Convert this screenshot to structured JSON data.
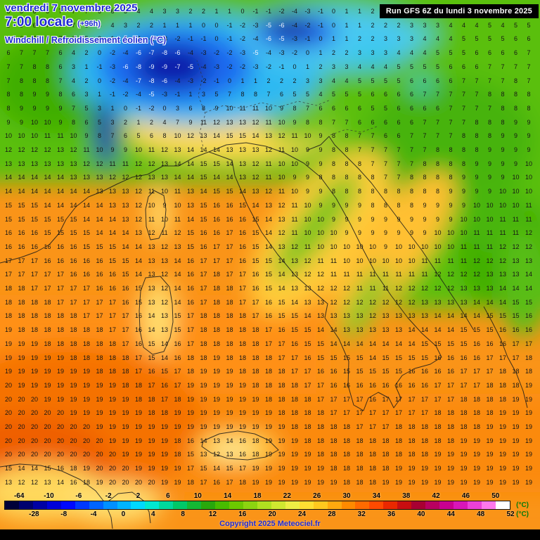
{
  "header": {
    "date_line": "vendredi 7 novembre 2025",
    "time_line": "7:00 locale",
    "offset_label": "(+96h)",
    "variable_label": "Windchill / Refroidissement éolien (°C)",
    "run_label": "Run GFS 6Z du lundi 3 novembre 2025"
  },
  "footer": {
    "copyright": "Copyright 2025 Meteociel.fr",
    "unit_label": "(°C)"
  },
  "scale": {
    "top_labels": [
      "-64",
      "-10",
      "-6",
      "-2",
      "2",
      "6",
      "10",
      "14",
      "18",
      "22",
      "26",
      "30",
      "34",
      "38",
      "42",
      "46",
      "50"
    ],
    "bottom_labels": [
      "-28",
      "-8",
      "-4",
      "0",
      "4",
      "8",
      "12",
      "16",
      "20",
      "24",
      "28",
      "32",
      "36",
      "40",
      "44",
      "48",
      "52"
    ],
    "colors": [
      "#000038",
      "#00006e",
      "#0000a4",
      "#0000d8",
      "#0008ff",
      "#0038ff",
      "#0064ff",
      "#0090ff",
      "#00b4ff",
      "#00d8ff",
      "#00e8d0",
      "#00d89c",
      "#00c868",
      "#14b834",
      "#28a80c",
      "#48bc00",
      "#6cc800",
      "#8cd410",
      "#b0e020",
      "#d0e830",
      "#eeee44",
      "#ffdf32",
      "#ffc81e",
      "#ffa90e",
      "#ff8a00",
      "#ff6a00",
      "#ff4a00",
      "#ea2800",
      "#c80e10",
      "#a80032",
      "#b80060",
      "#c80090",
      "#d816b8",
      "#ec40d8",
      "#ff78ec",
      "#ffffff"
    ]
  },
  "grid": {
    "rows": [
      [
        5,
        5,
        6,
        6,
        7,
        7,
        7,
        6,
        6,
        5,
        4,
        4,
        3,
        3,
        2,
        2,
        1,
        1,
        0,
        -1,
        -1,
        -2,
        -4,
        -3,
        -1,
        0,
        1,
        1,
        2,
        2,
        3,
        3,
        2,
        3,
        4,
        3,
        4,
        4,
        3,
        4,
        4
      ],
      [
        5,
        6,
        6,
        7,
        7,
        7,
        6,
        5,
        4,
        3,
        2,
        2,
        1,
        1,
        1,
        0,
        0,
        -1,
        -2,
        -3,
        -5,
        -6,
        -4,
        -2,
        -1,
        0,
        1,
        1,
        2,
        2,
        2,
        3,
        3,
        3,
        4,
        4,
        4,
        5,
        4,
        5,
        5
      ],
      [
        6,
        6,
        7,
        7,
        7,
        6,
        5,
        3,
        1,
        0,
        -1,
        -2,
        -3,
        -2,
        -1,
        -1,
        0,
        -1,
        -2,
        -4,
        -6,
        -5,
        -3,
        -1,
        0,
        1,
        1,
        2,
        2,
        3,
        3,
        3,
        4,
        4,
        4,
        5,
        5,
        5,
        5,
        6,
        6
      ],
      [
        6,
        7,
        7,
        7,
        6,
        4,
        2,
        0,
        -2,
        -4,
        -6,
        -7,
        -8,
        -6,
        -4,
        -3,
        -2,
        -2,
        -3,
        -5,
        -4,
        -3,
        -2,
        0,
        1,
        2,
        2,
        3,
        3,
        3,
        4,
        4,
        4,
        5,
        5,
        5,
        6,
        6,
        6,
        6,
        7
      ],
      [
        7,
        7,
        8,
        8,
        6,
        3,
        1,
        -1,
        -3,
        -6,
        -8,
        -9,
        -9,
        -7,
        -5,
        -4,
        -3,
        -2,
        -2,
        -3,
        -2,
        -1,
        0,
        1,
        2,
        3,
        3,
        4,
        4,
        4,
        5,
        5,
        5,
        5,
        6,
        6,
        6,
        7,
        7,
        7,
        7
      ],
      [
        7,
        8,
        8,
        8,
        7,
        4,
        2,
        0,
        -2,
        -4,
        -7,
        -8,
        -6,
        -4,
        -3,
        -2,
        -1,
        0,
        1,
        1,
        2,
        2,
        2,
        3,
        3,
        4,
        4,
        5,
        5,
        5,
        5,
        6,
        6,
        6,
        6,
        7,
        7,
        7,
        7,
        8,
        7
      ],
      [
        8,
        8,
        9,
        9,
        8,
        6,
        3,
        1,
        -1,
        -2,
        -4,
        -5,
        -3,
        -1,
        1,
        3,
        5,
        7,
        8,
        8,
        7,
        6,
        5,
        5,
        4,
        5,
        5,
        5,
        6,
        6,
        6,
        6,
        7,
        7,
        7,
        7,
        7,
        8,
        8,
        8,
        8
      ],
      [
        8,
        9,
        9,
        9,
        9,
        7,
        5,
        3,
        1,
        0,
        -1,
        -2,
        0,
        3,
        6,
        8,
        9,
        10,
        11,
        11,
        10,
        9,
        8,
        7,
        6,
        6,
        6,
        6,
        5,
        5,
        6,
        6,
        6,
        6,
        7,
        7,
        7,
        7,
        8,
        8,
        8
      ],
      [
        9,
        9,
        10,
        10,
        9,
        8,
        6,
        5,
        3,
        2,
        1,
        2,
        4,
        7,
        9,
        11,
        12,
        13,
        13,
        12,
        11,
        10,
        9,
        8,
        8,
        7,
        7,
        6,
        6,
        6,
        6,
        6,
        7,
        7,
        7,
        7,
        8,
        8,
        8,
        9,
        9
      ],
      [
        10,
        10,
        10,
        11,
        11,
        10,
        9,
        8,
        7,
        6,
        5,
        6,
        8,
        10,
        12,
        13,
        14,
        15,
        15,
        14,
        13,
        12,
        11,
        10,
        9,
        8,
        8,
        7,
        7,
        6,
        6,
        7,
        7,
        7,
        7,
        8,
        8,
        8,
        9,
        9,
        9
      ],
      [
        12,
        12,
        12,
        12,
        13,
        12,
        11,
        10,
        9,
        9,
        10,
        11,
        12,
        13,
        14,
        14,
        14,
        13,
        13,
        13,
        12,
        11,
        10,
        9,
        9,
        8,
        8,
        7,
        7,
        7,
        7,
        7,
        7,
        8,
        8,
        8,
        8,
        9,
        9,
        9,
        9
      ],
      [
        13,
        13,
        13,
        13,
        13,
        13,
        12,
        12,
        11,
        11,
        12,
        12,
        13,
        14,
        14,
        15,
        15,
        14,
        13,
        12,
        11,
        10,
        10,
        9,
        9,
        8,
        8,
        8,
        7,
        7,
        7,
        7,
        8,
        8,
        8,
        8,
        9,
        9,
        9,
        9,
        10
      ],
      [
        14,
        14,
        14,
        14,
        14,
        13,
        13,
        13,
        12,
        12,
        12,
        13,
        13,
        14,
        14,
        15,
        14,
        14,
        13,
        12,
        11,
        10,
        9,
        9,
        8,
        8,
        8,
        8,
        8,
        7,
        7,
        8,
        8,
        8,
        8,
        9,
        9,
        9,
        9,
        10,
        10
      ],
      [
        14,
        14,
        14,
        14,
        14,
        14,
        14,
        13,
        13,
        13,
        12,
        11,
        10,
        11,
        13,
        14,
        15,
        15,
        14,
        13,
        12,
        11,
        10,
        9,
        9,
        8,
        8,
        8,
        8,
        8,
        8,
        8,
        8,
        8,
        9,
        9,
        9,
        9,
        10,
        10,
        10
      ],
      [
        15,
        15,
        15,
        14,
        14,
        14,
        14,
        14,
        13,
        13,
        12,
        10,
        9,
        10,
        13,
        15,
        16,
        16,
        15,
        14,
        13,
        12,
        11,
        10,
        9,
        9,
        9,
        9,
        8,
        8,
        8,
        8,
        9,
        9,
        9,
        9,
        10,
        10,
        10,
        10,
        11
      ],
      [
        15,
        15,
        15,
        15,
        15,
        15,
        14,
        14,
        14,
        13,
        12,
        11,
        10,
        11,
        14,
        15,
        16,
        16,
        16,
        15,
        14,
        13,
        11,
        10,
        10,
        9,
        9,
        9,
        9,
        9,
        9,
        9,
        9,
        9,
        9,
        10,
        10,
        10,
        11,
        11,
        11
      ],
      [
        16,
        16,
        16,
        15,
        15,
        15,
        15,
        14,
        14,
        14,
        13,
        12,
        11,
        12,
        15,
        16,
        16,
        17,
        16,
        15,
        14,
        12,
        11,
        10,
        10,
        10,
        9,
        9,
        9,
        9,
        9,
        9,
        9,
        10,
        10,
        10,
        11,
        11,
        11,
        11,
        12
      ],
      [
        16,
        16,
        16,
        16,
        16,
        16,
        15,
        15,
        15,
        14,
        14,
        13,
        12,
        13,
        15,
        16,
        17,
        17,
        16,
        15,
        14,
        13,
        12,
        11,
        10,
        10,
        10,
        10,
        10,
        9,
        10,
        10,
        10,
        10,
        10,
        11,
        11,
        11,
        12,
        12,
        12
      ],
      [
        17,
        17,
        17,
        16,
        16,
        16,
        16,
        16,
        15,
        15,
        14,
        13,
        13,
        14,
        16,
        17,
        17,
        17,
        16,
        15,
        15,
        14,
        13,
        12,
        11,
        11,
        10,
        10,
        10,
        10,
        10,
        10,
        11,
        11,
        11,
        11,
        12,
        12,
        12,
        13,
        13
      ],
      [
        17,
        17,
        17,
        17,
        17,
        16,
        16,
        16,
        16,
        15,
        14,
        13,
        12,
        14,
        16,
        17,
        18,
        17,
        17,
        16,
        15,
        14,
        13,
        12,
        12,
        11,
        11,
        11,
        11,
        11,
        11,
        11,
        11,
        12,
        12,
        12,
        12,
        13,
        13,
        13,
        14
      ],
      [
        18,
        18,
        17,
        17,
        17,
        17,
        17,
        16,
        16,
        16,
        15,
        13,
        12,
        14,
        16,
        17,
        18,
        18,
        17,
        16,
        15,
        14,
        13,
        13,
        12,
        12,
        12,
        11,
        11,
        11,
        12,
        12,
        12,
        12,
        12,
        13,
        13,
        13,
        14,
        14,
        14
      ],
      [
        18,
        18,
        18,
        18,
        17,
        17,
        17,
        17,
        17,
        16,
        15,
        13,
        12,
        14,
        16,
        17,
        18,
        18,
        17,
        17,
        16,
        15,
        14,
        13,
        13,
        12,
        12,
        12,
        12,
        12,
        12,
        12,
        13,
        13,
        13,
        13,
        14,
        14,
        14,
        15,
        15
      ],
      [
        18,
        18,
        18,
        18,
        18,
        18,
        17,
        17,
        17,
        17,
        16,
        14,
        13,
        15,
        17,
        18,
        18,
        18,
        18,
        17,
        16,
        15,
        15,
        14,
        13,
        13,
        13,
        13,
        12,
        13,
        13,
        13,
        13,
        14,
        14,
        14,
        14,
        15,
        15,
        15,
        16
      ],
      [
        19,
        18,
        18,
        18,
        18,
        18,
        18,
        18,
        17,
        17,
        16,
        14,
        13,
        15,
        17,
        18,
        18,
        18,
        18,
        18,
        17,
        16,
        15,
        15,
        14,
        14,
        13,
        13,
        13,
        13,
        13,
        14,
        14,
        14,
        14,
        15,
        15,
        15,
        16,
        16,
        16
      ],
      [
        19,
        19,
        19,
        18,
        18,
        18,
        18,
        18,
        18,
        17,
        16,
        15,
        14,
        16,
        17,
        18,
        18,
        18,
        18,
        18,
        17,
        17,
        16,
        15,
        15,
        14,
        14,
        14,
        14,
        14,
        14,
        14,
        15,
        15,
        15,
        15,
        16,
        16,
        16,
        17,
        17
      ],
      [
        19,
        19,
        19,
        19,
        19,
        18,
        18,
        18,
        18,
        18,
        17,
        15,
        14,
        16,
        18,
        18,
        19,
        18,
        18,
        18,
        18,
        17,
        17,
        16,
        15,
        15,
        15,
        15,
        14,
        15,
        15,
        15,
        15,
        16,
        16,
        16,
        16,
        17,
        17,
        17,
        18
      ],
      [
        19,
        19,
        19,
        19,
        19,
        19,
        19,
        18,
        18,
        18,
        17,
        16,
        15,
        17,
        18,
        19,
        19,
        19,
        18,
        18,
        18,
        18,
        17,
        17,
        16,
        16,
        15,
        15,
        15,
        15,
        15,
        16,
        16,
        16,
        16,
        17,
        17,
        17,
        18,
        18,
        18
      ],
      [
        20,
        19,
        19,
        19,
        19,
        19,
        19,
        19,
        19,
        18,
        18,
        17,
        16,
        17,
        19,
        19,
        19,
        19,
        19,
        18,
        18,
        18,
        18,
        17,
        17,
        16,
        16,
        16,
        16,
        16,
        16,
        16,
        16,
        17,
        17,
        17,
        17,
        18,
        18,
        18,
        19
      ],
      [
        20,
        20,
        20,
        19,
        19,
        19,
        19,
        19,
        19,
        19,
        18,
        18,
        17,
        18,
        19,
        19,
        19,
        19,
        19,
        19,
        18,
        18,
        18,
        18,
        17,
        17,
        17,
        17,
        16,
        17,
        17,
        17,
        17,
        17,
        17,
        18,
        18,
        18,
        18,
        19,
        19
      ],
      [
        20,
        20,
        20,
        20,
        20,
        19,
        19,
        19,
        19,
        19,
        19,
        18,
        18,
        19,
        19,
        19,
        19,
        19,
        19,
        19,
        19,
        18,
        18,
        18,
        18,
        17,
        17,
        17,
        17,
        17,
        17,
        17,
        17,
        18,
        18,
        18,
        18,
        18,
        19,
        19,
        19
      ],
      [
        20,
        20,
        20,
        20,
        20,
        20,
        20,
        19,
        19,
        19,
        19,
        19,
        19,
        19,
        19,
        19,
        19,
        19,
        19,
        19,
        19,
        19,
        18,
        18,
        18,
        18,
        18,
        17,
        17,
        17,
        18,
        18,
        18,
        18,
        18,
        18,
        18,
        19,
        19,
        19,
        19
      ],
      [
        20,
        20,
        20,
        20,
        20,
        20,
        20,
        20,
        19,
        19,
        19,
        19,
        19,
        18,
        16,
        14,
        13,
        14,
        16,
        18,
        19,
        19,
        19,
        18,
        18,
        18,
        18,
        18,
        18,
        18,
        18,
        18,
        18,
        18,
        18,
        19,
        19,
        19,
        19,
        19,
        19
      ],
      [
        20,
        20,
        20,
        20,
        20,
        20,
        20,
        20,
        20,
        19,
        19,
        19,
        19,
        18,
        15,
        13,
        12,
        13,
        16,
        18,
        19,
        19,
        19,
        19,
        18,
        18,
        18,
        18,
        18,
        18,
        18,
        18,
        18,
        19,
        19,
        19,
        19,
        19,
        19,
        19,
        19
      ],
      [
        15,
        14,
        14,
        15,
        16,
        18,
        19,
        20,
        20,
        20,
        19,
        19,
        19,
        19,
        17,
        15,
        14,
        15,
        17,
        19,
        19,
        19,
        19,
        19,
        19,
        18,
        18,
        18,
        18,
        18,
        19,
        19,
        19,
        19,
        19,
        19,
        19,
        19,
        19,
        19,
        19
      ],
      [
        13,
        12,
        12,
        13,
        14,
        16,
        18,
        19,
        20,
        20,
        20,
        20,
        19,
        19,
        18,
        17,
        16,
        17,
        18,
        19,
        19,
        19,
        19,
        19,
        19,
        19,
        18,
        18,
        18,
        19,
        19,
        19,
        19,
        19,
        19,
        19,
        19,
        19,
        19,
        19,
        19
      ]
    ]
  }
}
